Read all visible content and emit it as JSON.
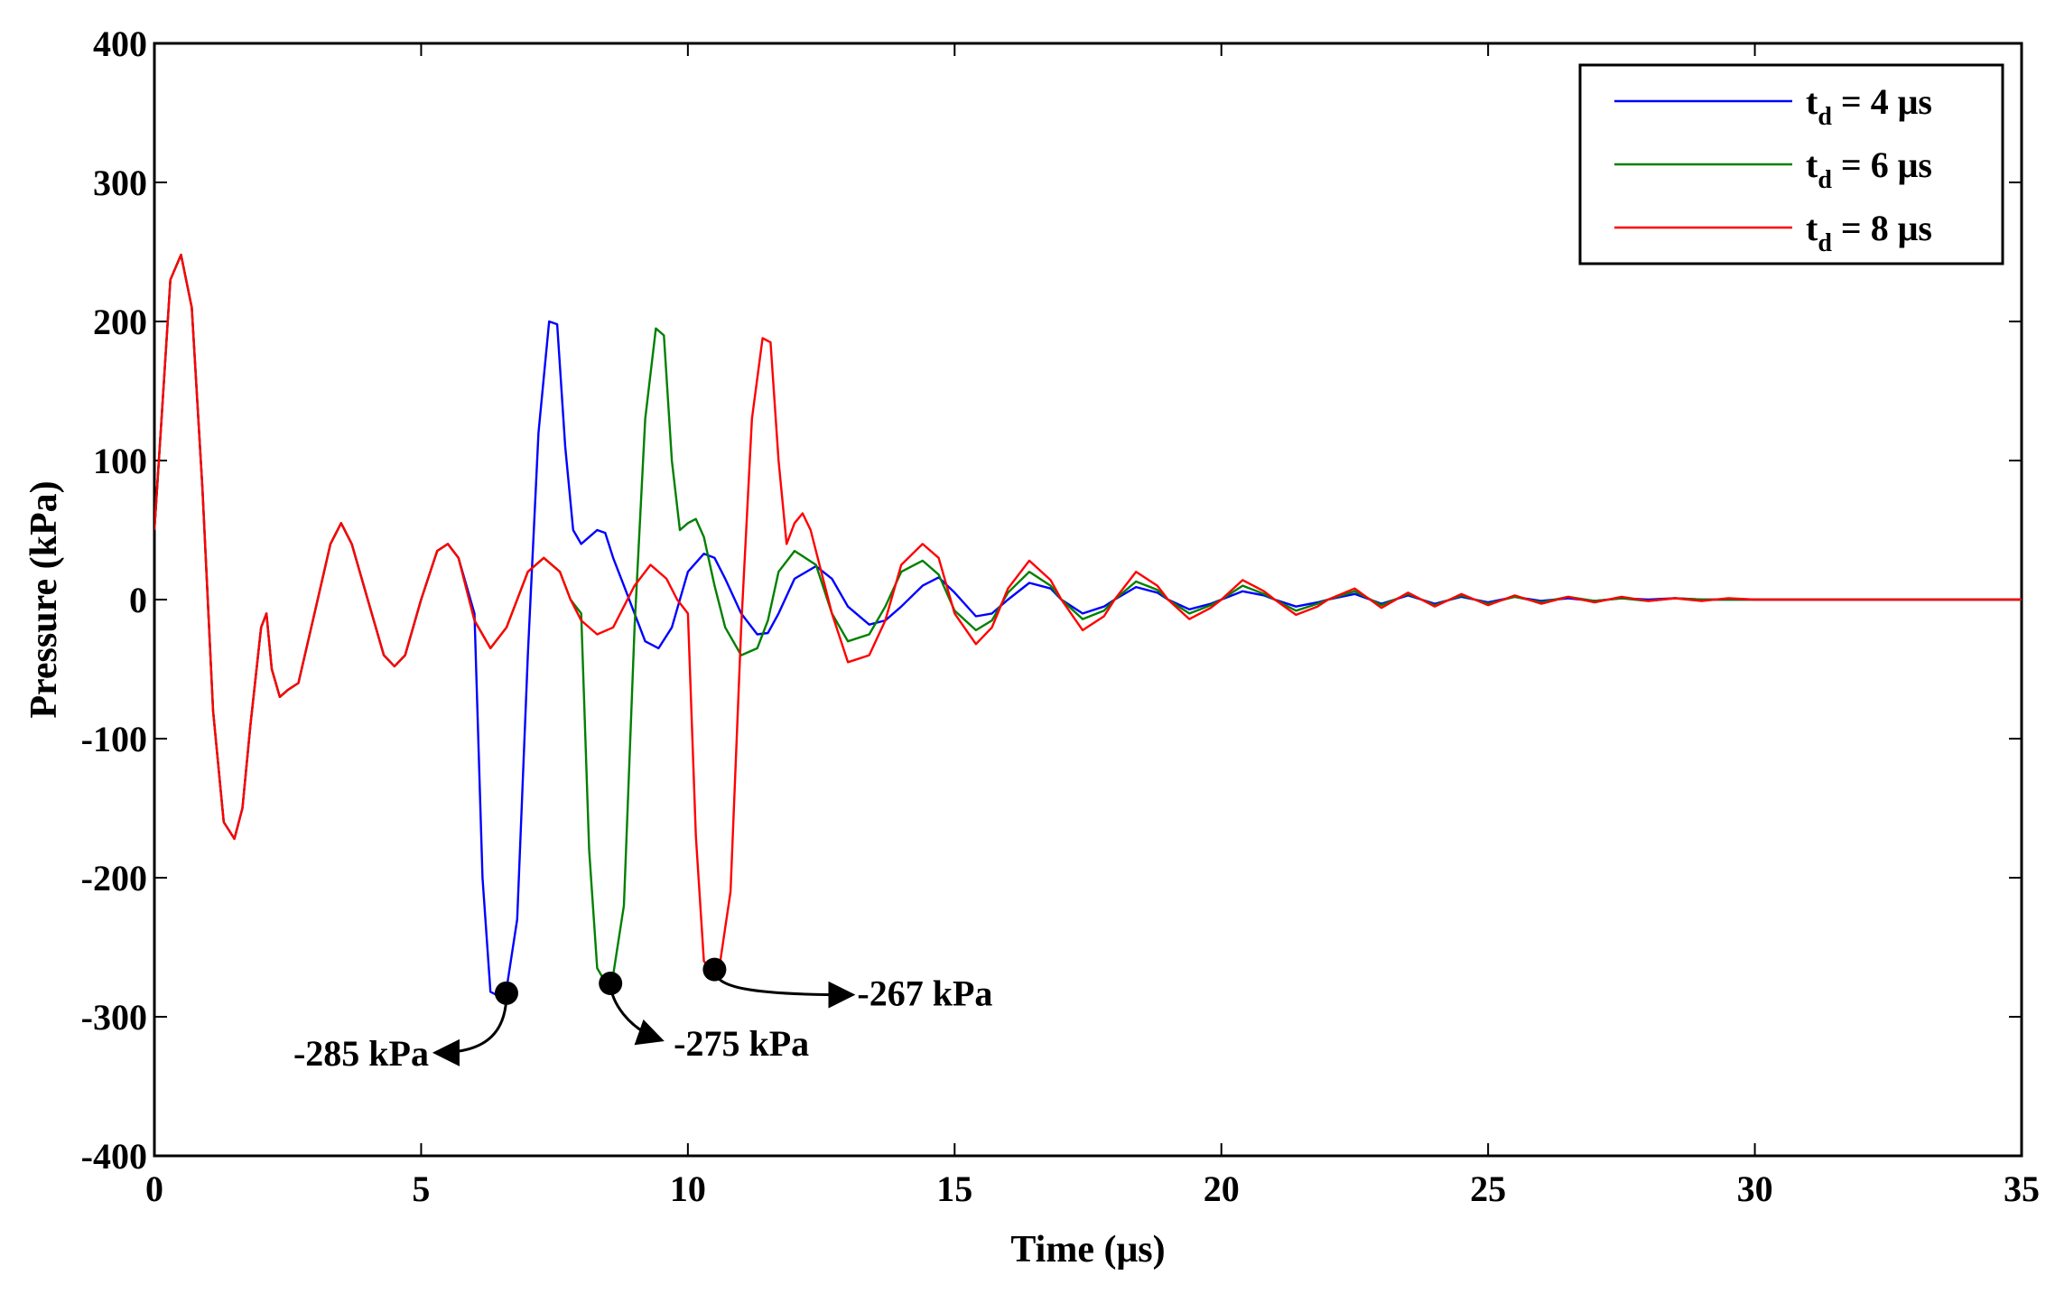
{
  "chart_data": {
    "type": "line",
    "title": "",
    "xlabel": "Time (μs)",
    "ylabel": "Pressure (kPa)",
    "xlim": [
      0,
      35
    ],
    "ylim": [
      -400,
      400
    ],
    "xticks": [
      0,
      5,
      10,
      15,
      20,
      25,
      30,
      35
    ],
    "yticks": [
      -400,
      -300,
      -200,
      -100,
      0,
      100,
      200,
      300,
      400
    ],
    "grid": false,
    "legend_position": "top-right",
    "series": [
      {
        "name_main": "t",
        "name_sub": "d",
        "name_rest": " = 4 μs",
        "color": "#0000ff",
        "x": [
          0,
          0.15,
          0.3,
          0.5,
          0.7,
          0.9,
          1.1,
          1.3,
          1.5,
          1.65,
          1.8,
          2.0,
          2.1,
          2.2,
          2.35,
          2.5,
          2.7,
          3.0,
          3.3,
          3.5,
          3.7,
          4.0,
          4.3,
          4.5,
          4.7,
          5.0,
          5.3,
          5.5,
          5.7,
          6.0,
          6.15,
          6.3,
          6.45,
          6.6,
          6.8,
          7.0,
          7.2,
          7.4,
          7.55,
          7.7,
          7.85,
          8.0,
          8.15,
          8.3,
          8.45,
          8.6,
          8.8,
          9.0,
          9.2,
          9.45,
          9.7,
          10.0,
          10.3,
          10.5,
          10.7,
          11.0,
          11.3,
          11.5,
          11.7,
          12.0,
          12.4,
          12.7,
          13.0,
          13.4,
          13.7,
          14.0,
          14.4,
          14.7,
          15.0,
          15.4,
          15.7,
          16.0,
          16.4,
          16.8,
          17.0,
          17.4,
          17.8,
          18.0,
          18.4,
          18.8,
          19.0,
          19.4,
          19.8,
          20.0,
          20.4,
          20.8,
          21.0,
          21.4,
          21.8,
          22.0,
          22.5,
          23.0,
          23.5,
          24.0,
          24.5,
          25.0,
          25.5,
          26.0,
          26.5,
          27.0,
          27.5,
          28.0,
          28.5,
          29.0,
          29.5,
          30.0,
          31.0,
          32.0,
          33.0,
          34.0,
          35.0
        ],
        "y": [
          50,
          140,
          230,
          248,
          210,
          80,
          -80,
          -160,
          -172,
          -150,
          -90,
          -20,
          -10,
          -50,
          -70,
          -65,
          -60,
          -10,
          40,
          55,
          40,
          0,
          -40,
          -48,
          -40,
          0,
          35,
          40,
          30,
          -10,
          -200,
          -282,
          -285,
          -280,
          -230,
          -40,
          120,
          200,
          198,
          110,
          50,
          40,
          45,
          50,
          48,
          30,
          10,
          -10,
          -30,
          -35,
          -20,
          20,
          33,
          30,
          15,
          -10,
          -25,
          -24,
          -10,
          15,
          24,
          15,
          -5,
          -18,
          -15,
          -5,
          10,
          16,
          5,
          -12,
          -10,
          0,
          12,
          8,
          0,
          -10,
          -5,
          0,
          9,
          5,
          0,
          -7,
          -3,
          0,
          6,
          3,
          0,
          -5,
          -2,
          0,
          4,
          -3,
          3,
          -3,
          2,
          -2,
          2,
          -1,
          1,
          -1,
          1,
          0,
          1,
          0,
          0,
          0,
          0,
          0,
          0,
          0,
          0
        ]
      },
      {
        "name_main": "t",
        "name_sub": "d",
        "name_rest": " = 6 μs",
        "color": "#008000",
        "x": [
          0,
          0.15,
          0.3,
          0.5,
          0.7,
          0.9,
          1.1,
          1.3,
          1.5,
          1.65,
          1.8,
          2.0,
          2.1,
          2.2,
          2.35,
          2.5,
          2.7,
          3.0,
          3.3,
          3.5,
          3.7,
          4.0,
          4.3,
          4.5,
          4.7,
          5.0,
          5.3,
          5.5,
          5.7,
          6.0,
          6.3,
          6.6,
          7.0,
          7.3,
          7.6,
          7.8,
          8.0,
          8.15,
          8.3,
          8.45,
          8.6,
          8.8,
          9.0,
          9.2,
          9.4,
          9.55,
          9.7,
          9.85,
          10.0,
          10.15,
          10.3,
          10.5,
          10.7,
          11.0,
          11.3,
          11.5,
          11.7,
          12.0,
          12.4,
          12.7,
          13.0,
          13.4,
          13.7,
          14.0,
          14.4,
          14.7,
          15.0,
          15.4,
          15.7,
          16.0,
          16.4,
          16.8,
          17.0,
          17.4,
          17.8,
          18.0,
          18.4,
          18.8,
          19.0,
          19.4,
          19.8,
          20.0,
          20.4,
          20.8,
          21.0,
          21.4,
          21.8,
          22.0,
          22.5,
          23.0,
          23.5,
          24.0,
          24.5,
          25.0,
          25.5,
          26.0,
          26.5,
          27.0,
          27.5,
          28.0,
          28.5,
          29.0,
          29.5,
          30.0,
          31.0,
          32.0,
          33.0,
          34.0,
          35.0
        ],
        "y": [
          50,
          140,
          230,
          248,
          210,
          80,
          -80,
          -160,
          -172,
          -150,
          -90,
          -20,
          -10,
          -50,
          -70,
          -65,
          -60,
          -10,
          40,
          55,
          40,
          0,
          -40,
          -48,
          -40,
          0,
          35,
          40,
          30,
          -15,
          -35,
          -20,
          20,
          30,
          20,
          0,
          -10,
          -180,
          -265,
          -275,
          -270,
          -220,
          -20,
          130,
          195,
          190,
          100,
          50,
          55,
          58,
          45,
          10,
          -20,
          -40,
          -35,
          -15,
          20,
          35,
          25,
          -10,
          -30,
          -25,
          -5,
          20,
          28,
          18,
          -8,
          -22,
          -15,
          5,
          20,
          10,
          0,
          -14,
          -8,
          0,
          13,
          7,
          0,
          -10,
          -4,
          0,
          10,
          4,
          0,
          -8,
          -3,
          0,
          6,
          -4,
          4,
          -4,
          3,
          -3,
          2,
          -2,
          2,
          -1,
          1,
          -1,
          1,
          0,
          0,
          0,
          0,
          0,
          0,
          0,
          0
        ]
      },
      {
        "name_main": "t",
        "name_sub": "d",
        "name_rest": " = 8 μs",
        "color": "#ff0000",
        "x": [
          0,
          0.15,
          0.3,
          0.5,
          0.7,
          0.9,
          1.1,
          1.3,
          1.5,
          1.65,
          1.8,
          2.0,
          2.1,
          2.2,
          2.35,
          2.5,
          2.7,
          3.0,
          3.3,
          3.5,
          3.7,
          4.0,
          4.3,
          4.5,
          4.7,
          5.0,
          5.3,
          5.5,
          5.7,
          6.0,
          6.3,
          6.6,
          7.0,
          7.3,
          7.6,
          7.8,
          8.0,
          8.3,
          8.6,
          9.0,
          9.3,
          9.6,
          9.8,
          10.0,
          10.15,
          10.3,
          10.45,
          10.6,
          10.8,
          11.0,
          11.2,
          11.4,
          11.55,
          11.7,
          11.85,
          12.0,
          12.15,
          12.3,
          12.5,
          12.7,
          13.0,
          13.4,
          13.7,
          14.0,
          14.4,
          14.7,
          15.0,
          15.4,
          15.7,
          16.0,
          16.4,
          16.8,
          17.0,
          17.4,
          17.8,
          18.0,
          18.4,
          18.8,
          19.0,
          19.4,
          19.8,
          20.0,
          20.4,
          20.8,
          21.0,
          21.4,
          21.8,
          22.0,
          22.5,
          23.0,
          23.5,
          24.0,
          24.5,
          25.0,
          25.5,
          26.0,
          26.5,
          27.0,
          27.5,
          28.0,
          28.5,
          29.0,
          29.5,
          30.0,
          31.0,
          32.0,
          33.0,
          34.0,
          35.0
        ],
        "y": [
          50,
          140,
          230,
          248,
          210,
          80,
          -80,
          -160,
          -172,
          -150,
          -90,
          -20,
          -10,
          -50,
          -70,
          -65,
          -60,
          -10,
          40,
          55,
          40,
          0,
          -40,
          -48,
          -40,
          0,
          35,
          40,
          30,
          -15,
          -35,
          -20,
          20,
          30,
          20,
          0,
          -15,
          -25,
          -20,
          10,
          25,
          15,
          0,
          -10,
          -170,
          -260,
          -267,
          -262,
          -210,
          -20,
          130,
          188,
          185,
          100,
          40,
          55,
          62,
          50,
          20,
          -10,
          -45,
          -40,
          -15,
          25,
          40,
          30,
          -10,
          -32,
          -20,
          8,
          28,
          14,
          0,
          -22,
          -12,
          0,
          20,
          10,
          0,
          -14,
          -6,
          0,
          14,
          6,
          0,
          -11,
          -5,
          0,
          8,
          -6,
          5,
          -5,
          4,
          -4,
          3,
          -3,
          2,
          -2,
          2,
          -1,
          1,
          -1,
          1,
          0,
          0,
          0,
          0,
          0,
          0
        ]
      }
    ],
    "annotations": [
      {
        "text": "-285 kPa",
        "x": 6.6,
        "y": -283,
        "text_side": "left"
      },
      {
        "text": "-275 kPa",
        "x": 8.55,
        "y": -276,
        "text_side": "right-below"
      },
      {
        "text": "-267 kPa",
        "x": 10.5,
        "y": -266,
        "text_side": "right"
      }
    ]
  }
}
